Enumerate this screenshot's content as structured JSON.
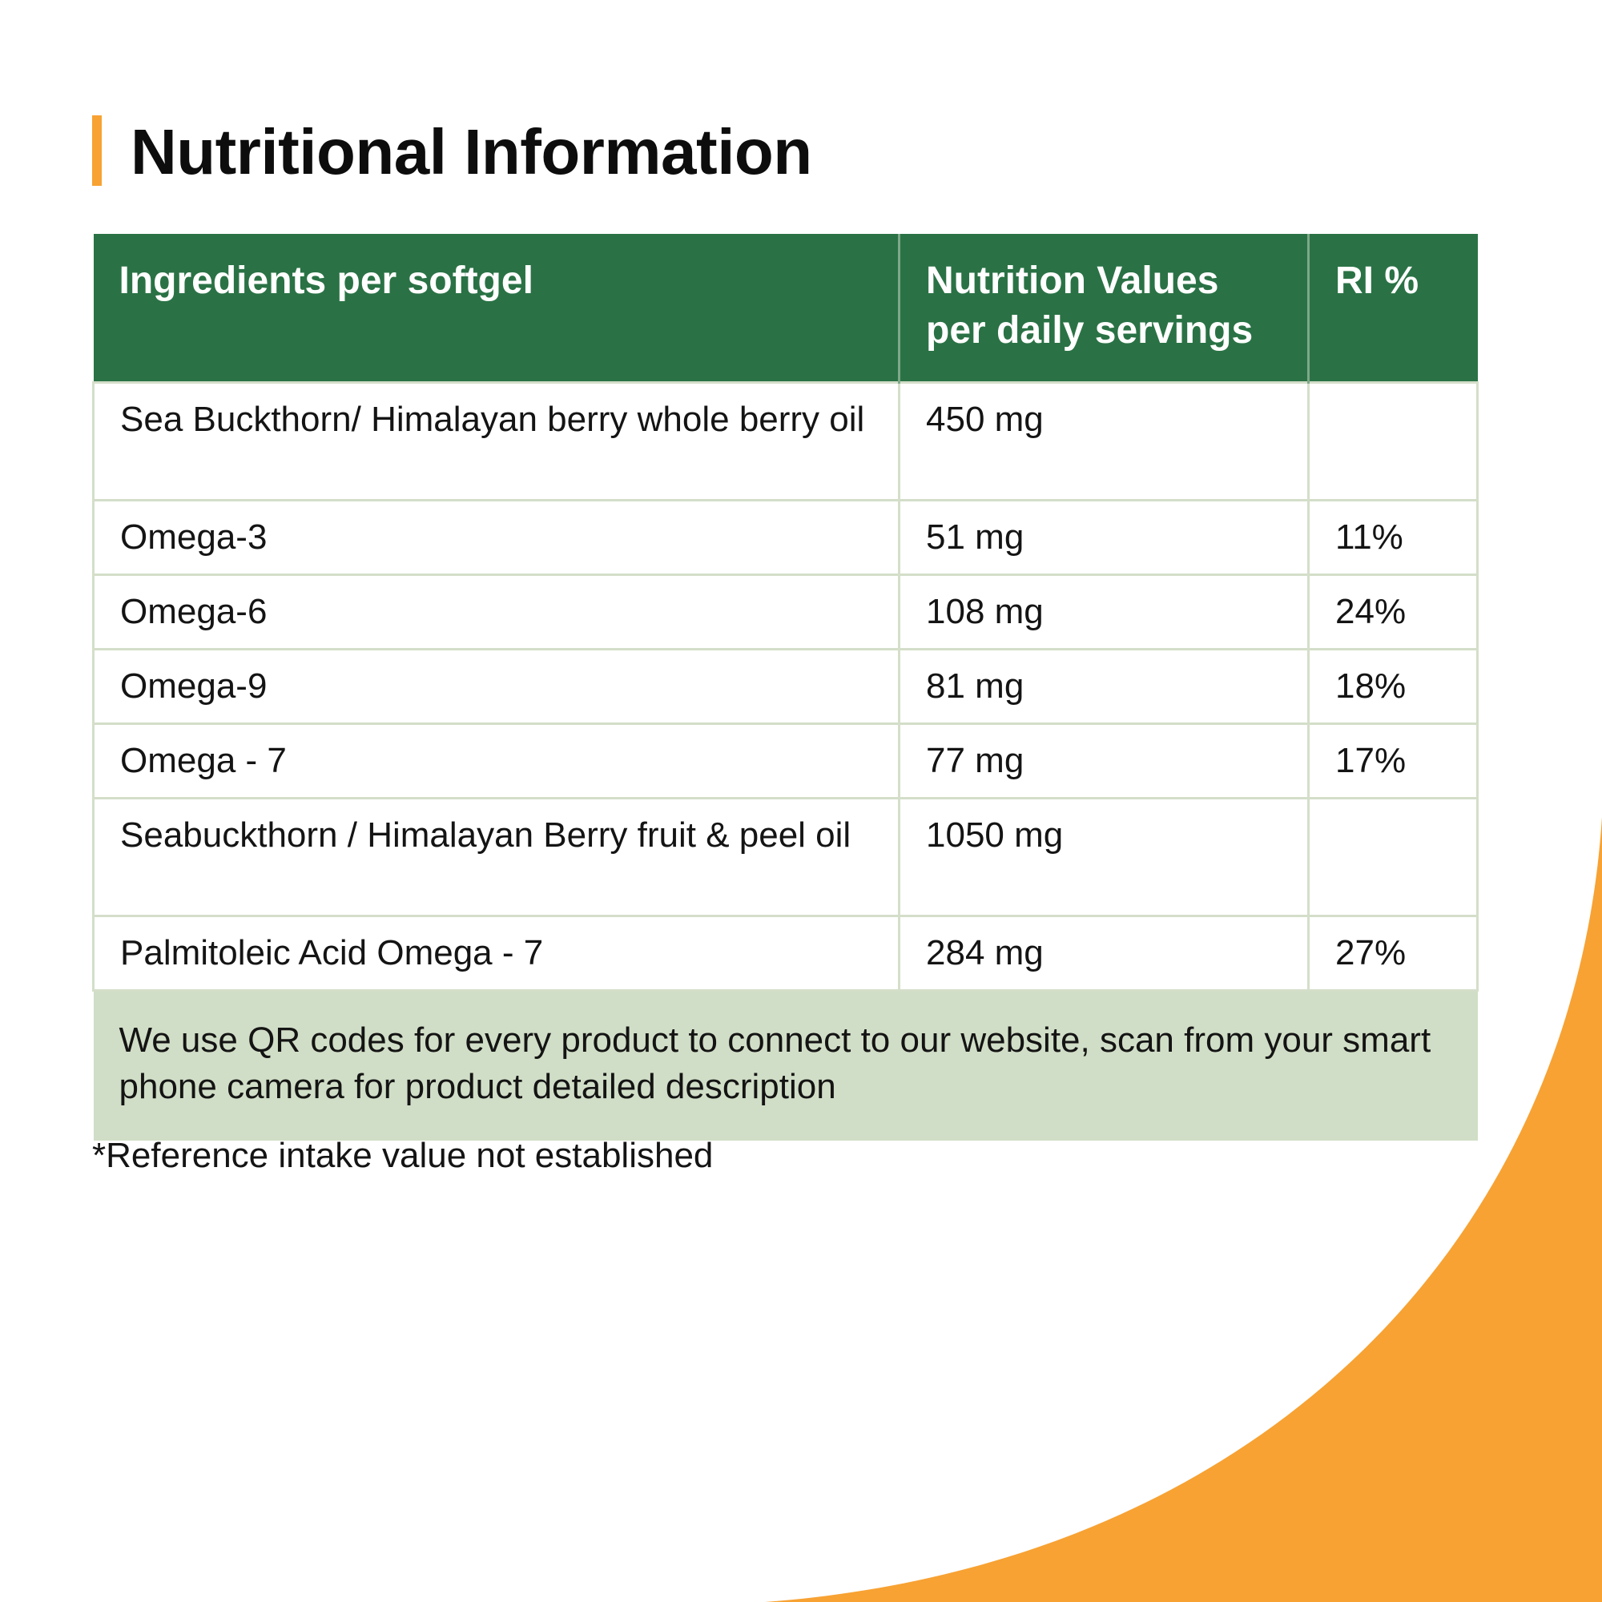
{
  "colors": {
    "accent_orange": "#f7a233",
    "header_green": "#2a7245",
    "note_background": "#d1dec7",
    "grid_line": "#d4dec9"
  },
  "title": "Nutritional Information",
  "table": {
    "headers": [
      "Ingredients per softgel",
      "Nutrition Values per daily servings",
      "RI %"
    ],
    "rows": [
      {
        "ingredient": "Sea Buckthorn/ Himalayan berry whole berry oil",
        "value": "450 mg",
        "ri": ""
      },
      {
        "ingredient": "Omega-3",
        "value": "51 mg",
        "ri": "11%"
      },
      {
        "ingredient": "Omega-6",
        "value": "108 mg",
        "ri": "24%"
      },
      {
        "ingredient": "Omega-9",
        "value": "81 mg",
        "ri": "18%"
      },
      {
        "ingredient": "Omega - 7",
        "value": "77 mg",
        "ri": "17%"
      },
      {
        "ingredient": "Seabuckthorn / Himalayan Berry fruit & peel oil",
        "value": "1050 mg",
        "ri": ""
      },
      {
        "ingredient": "Palmitoleic Acid Omega - 7",
        "value": "284 mg",
        "ri": "27%"
      }
    ],
    "note": "We use QR codes for every product to connect to our website, scan from your smart phone camera for product detailed description"
  },
  "footnote": "*Reference intake value not established"
}
